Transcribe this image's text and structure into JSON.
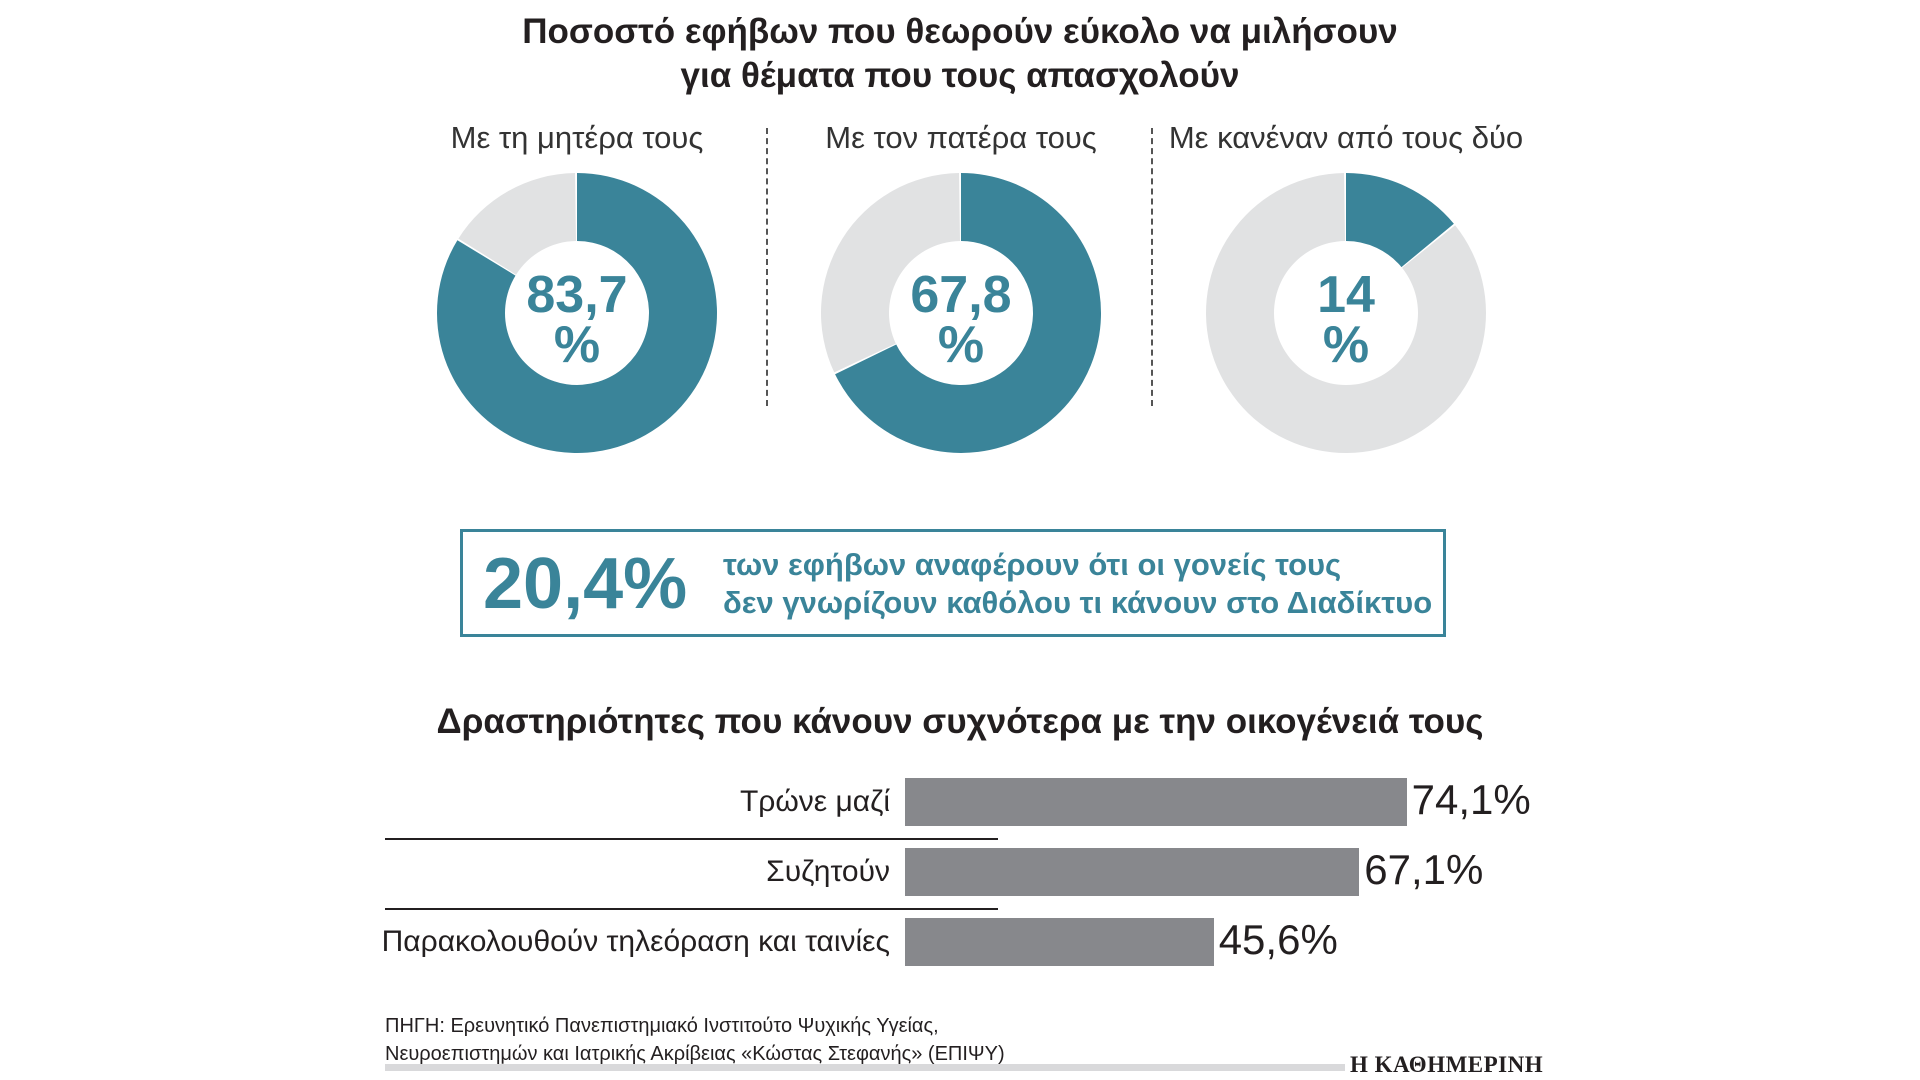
{
  "title": {
    "line1": "Ποσοστό εφήβων που θεωρούν εύκολο να μιλήσουν",
    "line2": "για θέματα που τους απασχολούν"
  },
  "colors": {
    "accent": "#3a8499",
    "track": "#e1e2e3",
    "bar": "#87888c",
    "text": "#231f20"
  },
  "chart_data": [
    {
      "type": "pie",
      "title": "Ποσοστό εφήβων που θεωρούν εύκολο να μιλήσουν για θέματα που τους απασχολούν",
      "charts": [
        {
          "label": "Με τη μητέρα τους",
          "value": 83.7,
          "value_text": "83,7",
          "unit": "%"
        },
        {
          "label": "Με τον πατέρα τους",
          "value": 67.8,
          "value_text": "67,8",
          "unit": "%"
        },
        {
          "label": "Με κανέναν από τους δύο",
          "value": 14,
          "value_text": "14",
          "unit": "%"
        }
      ]
    },
    {
      "type": "bar",
      "orientation": "horizontal",
      "title": "Δραστηριότητες που κάνουν συχνότερα με την οικογένειά τους",
      "categories": [
        "Τρώνε μαζί",
        "Συζητούν",
        "Παρακολουθούν τηλεόραση και ταινίες"
      ],
      "values": [
        74.1,
        67.1,
        45.6
      ],
      "value_labels": [
        "74,1%",
        "67,1%",
        "45,6%"
      ],
      "xlim": [
        0,
        100
      ]
    }
  ],
  "callout": {
    "number": "20,4%",
    "line1": "των εφήβων αναφέρουν ότι οι γονείς τους",
    "line2": "δεν γνωρίζουν καθόλου τι κάνουν στο Διαδίκτυο"
  },
  "source": {
    "line1": "ΠΗΓΗ: Ερευνητικό Πανεπιστημιακό Ινστιτούτο Ψυχικής Υγείας,",
    "line2": "Νευροεπιστημών και Ιατρικής Ακρίβειας «Κώστας Στεφανής» (ΕΠΙΨΥ)"
  },
  "logo": "Η ΚΑΘΗΜΕΡΙΝΗ"
}
